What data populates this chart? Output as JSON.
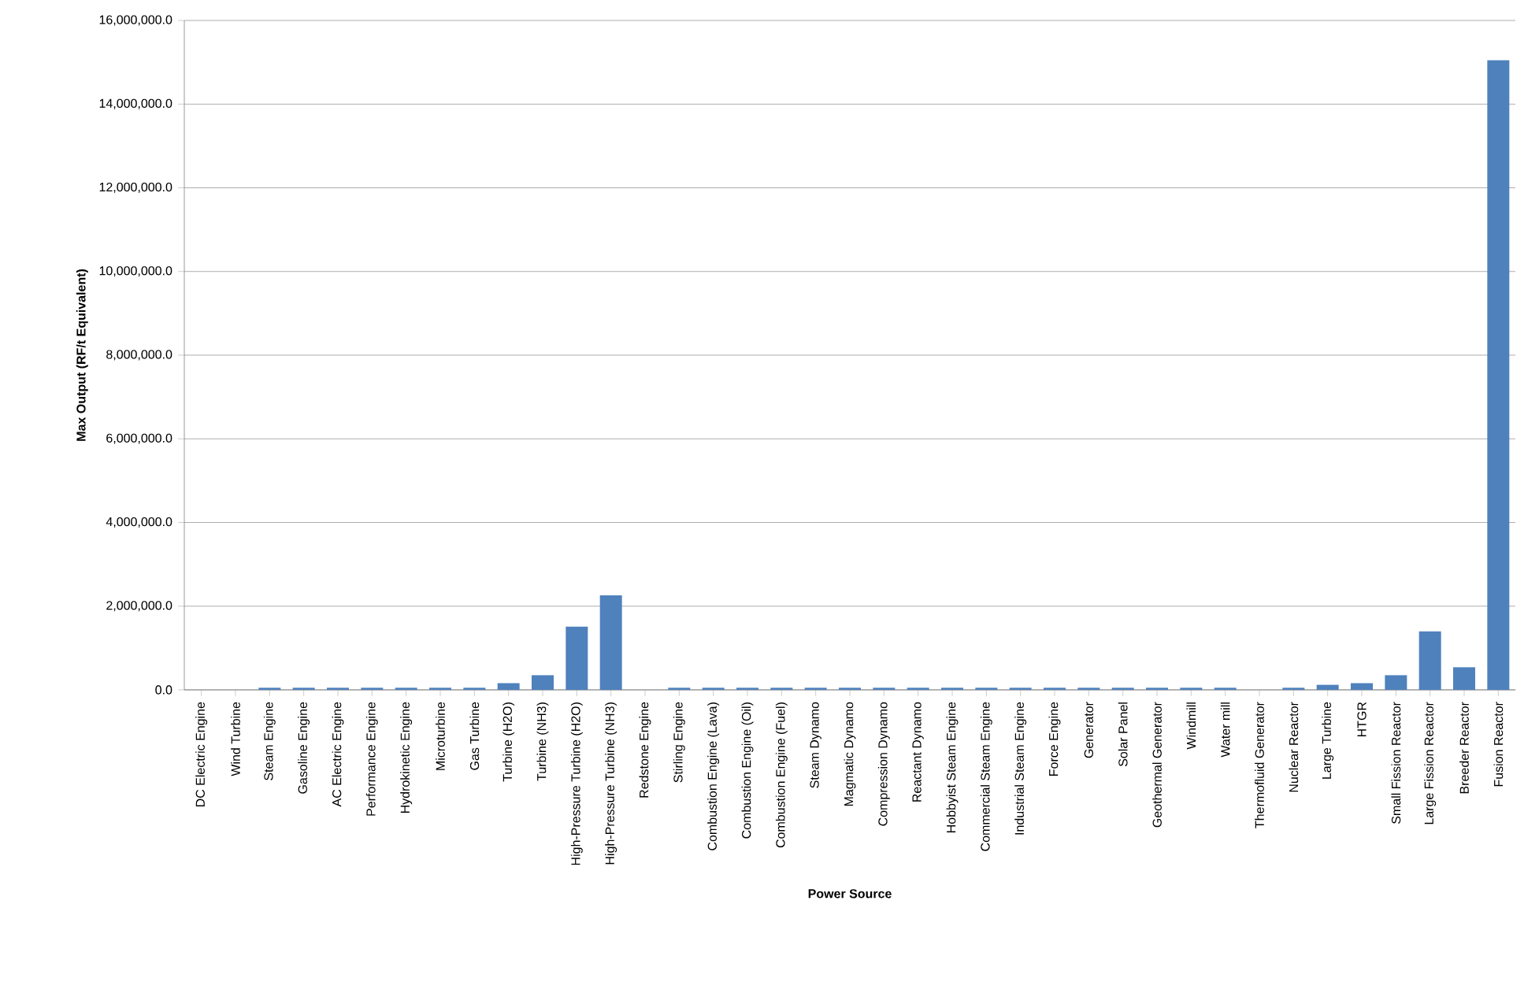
{
  "chart_data": {
    "type": "bar",
    "xlabel": "Power Source",
    "ylabel": "Max Output (RF/t Equivalent)",
    "color": "#4f81bd",
    "categories": [
      "DC Electric Engine",
      "Wind Turbine",
      "Steam Engine",
      "Gasoline Engine",
      "AC Electric Engine",
      "Performance Engine",
      "Hydrokinetic Engine",
      "Microturbine",
      "Gas Turbine",
      "Turbine (H2O)",
      "Turbine (NH3)",
      "High-Pressure Turbine (H2O)",
      "High-Pressure Turbine (NH3)",
      "Redstone Engine",
      "Stirling Engine",
      "Combustion Engine (Lava)",
      "Combustion Engine (Oil)",
      "Combustion Engine (Fuel)",
      "Steam Dynamo",
      "Magmatic Dynamo",
      "Compression Dynamo",
      "Reactant Dynamo",
      "Hobbyist Steam Engine",
      "Commercial Steam Engine",
      "Industrial Steam Engine",
      "Force Engine",
      "Generator",
      "Solar Panel",
      "Geothermal Generator",
      "Windmill",
      "Water mill",
      "Thermofluid Generator",
      "Nuclear Reactor",
      "Large Turbine",
      "HTGR",
      "Small Fission Reactor",
      "Large Fission Reactor",
      "Breeder Reactor",
      "Fusion Reactor"
    ],
    "values": [
      0,
      0,
      50000,
      50000,
      50000,
      50000,
      50000,
      50000,
      50000,
      160000,
      350000,
      1510000,
      2260000,
      0,
      50000,
      50000,
      50000,
      50000,
      50000,
      50000,
      50000,
      50000,
      50000,
      50000,
      50000,
      50000,
      50000,
      50000,
      50000,
      50000,
      50000,
      0,
      50000,
      120000,
      160000,
      350000,
      1400000,
      540000,
      15050000
    ],
    "ylim": [
      0,
      16000000
    ],
    "yticks": [
      {
        "value": 0,
        "label": "0.0"
      },
      {
        "value": 2000000,
        "label": "2,000,000.0"
      },
      {
        "value": 4000000,
        "label": "4,000,000.0"
      },
      {
        "value": 6000000,
        "label": "6,000,000.0"
      },
      {
        "value": 8000000,
        "label": "8,000,000.0"
      },
      {
        "value": 10000000,
        "label": "10,000,000.0"
      },
      {
        "value": 12000000,
        "label": "12,000,000.0"
      },
      {
        "value": 14000000,
        "label": "14,000,000.0"
      },
      {
        "value": 16000000,
        "label": "16,000,000.0"
      }
    ],
    "grid": "y"
  }
}
